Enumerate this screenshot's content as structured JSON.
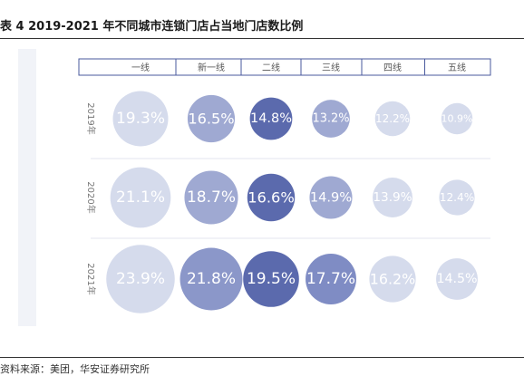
{
  "title": "表 4 2019-2021 年不同城市连锁门店占当地门店数比例",
  "source": "资料来源：美团，华安证券研究所",
  "colors": {
    "light": "#d5dbec",
    "mid": "#9fa9d2",
    "dark": "#5b6aad",
    "text_light": "#ffffff",
    "header_border": "#4a5a9e",
    "header_text": "#555555",
    "row_label": "#777777"
  },
  "chart_data": {
    "type": "table",
    "title": "",
    "categories": [
      "一线",
      "新一线",
      "二线",
      "三线",
      "四线",
      "五线"
    ],
    "series": [
      {
        "name": "2019年",
        "values": [
          "19.3%",
          "16.5%",
          "14.8%",
          "13.2%",
          "12.2%",
          "10.9%"
        ],
        "numeric": [
          19.3,
          16.5,
          14.8,
          13.2,
          12.2,
          10.9
        ]
      },
      {
        "name": "2020年",
        "values": [
          "21.1%",
          "18.7%",
          "16.6%",
          "14.9%",
          "13.9%",
          "12.4%"
        ],
        "numeric": [
          21.1,
          18.7,
          16.6,
          14.9,
          13.9,
          12.4
        ]
      },
      {
        "name": "2021年",
        "values": [
          "23.9%",
          "21.8%",
          "19.5%",
          "17.7%",
          "16.2%",
          "14.5%"
        ],
        "numeric": [
          23.9,
          21.8,
          19.5,
          17.7,
          16.2,
          14.5
        ]
      }
    ],
    "value_unit": "%",
    "grid": true,
    "legend": "none"
  }
}
